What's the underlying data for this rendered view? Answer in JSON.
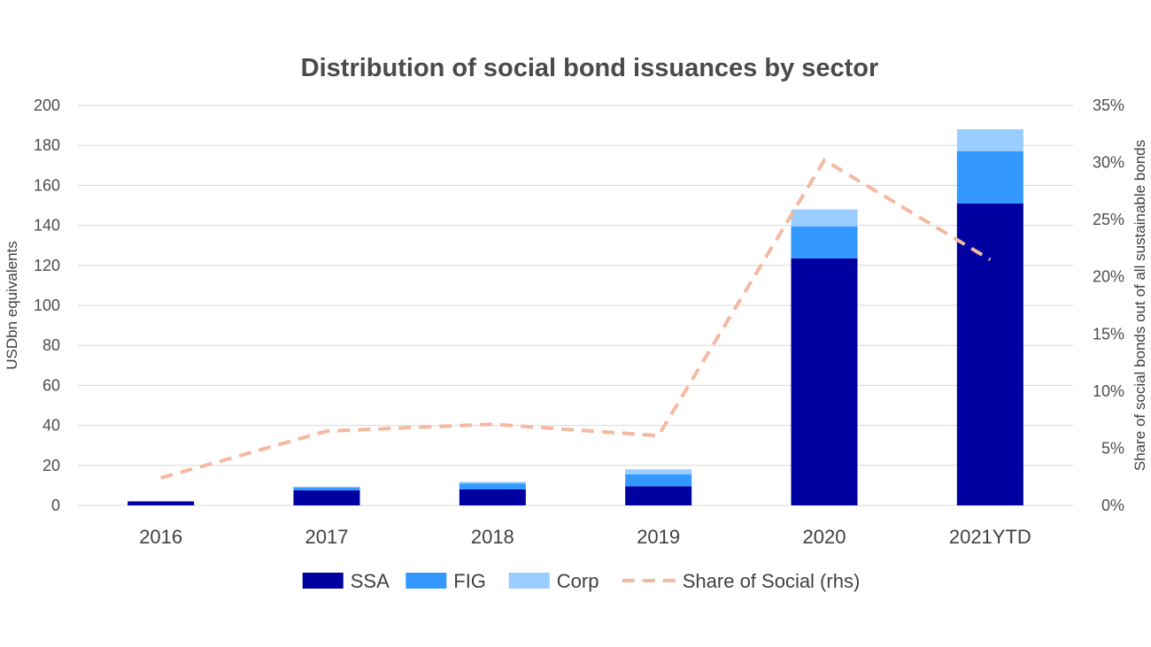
{
  "chart_data": {
    "type": "bar",
    "stacked": true,
    "title": "Distribution of social bond issuances by sector",
    "ylabel": "USDbn equivalents",
    "y2label": "Share of social bonds out of  all sustainable bonds",
    "categories": [
      "2016",
      "2017",
      "2018",
      "2019",
      "2020",
      "2021YTD"
    ],
    "ylim": [
      0,
      200
    ],
    "yticks": [
      "0",
      "20",
      "40",
      "60",
      "80",
      "100",
      "120",
      "140",
      "160",
      "180",
      "200"
    ],
    "y2lim": [
      0,
      0.35
    ],
    "y2ticks": [
      "0%",
      "5%",
      "10%",
      "15%",
      "20%",
      "25%",
      "30%",
      "35%"
    ],
    "grid": true,
    "legend_position": "bottom",
    "series": [
      {
        "name": "SSA",
        "kind": "bar",
        "axis": "left",
        "color": "#0000a0",
        "values": [
          2,
          7.5,
          8,
          9.5,
          123.5,
          151
        ]
      },
      {
        "name": "FIG",
        "kind": "bar",
        "axis": "left",
        "color": "#3399ff",
        "values": [
          0,
          1.5,
          3,
          6,
          16,
          26
        ]
      },
      {
        "name": "Corp",
        "kind": "bar",
        "axis": "left",
        "color": "#99ccff",
        "values": [
          0,
          0.3,
          0.8,
          2.5,
          8.5,
          11
        ]
      },
      {
        "name": "Share of Social (rhs)",
        "kind": "line",
        "axis": "right",
        "style": "dashed",
        "color": "#f4b9a0",
        "values": [
          0.024,
          0.065,
          0.071,
          0.061,
          0.302,
          0.215
        ]
      }
    ]
  }
}
